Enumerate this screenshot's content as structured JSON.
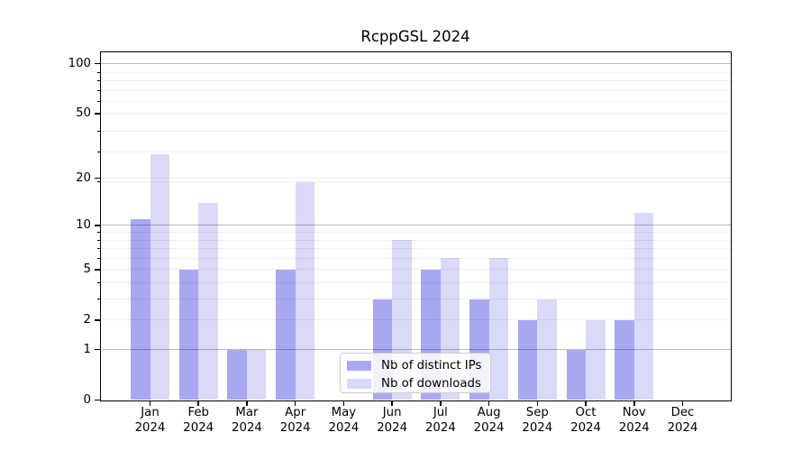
{
  "chart_data": {
    "type": "bar",
    "title": "RcppGSL 2024",
    "x_categories": [
      "Jan",
      "Feb",
      "Mar",
      "Apr",
      "May",
      "Jun",
      "Jul",
      "Aug",
      "Sep",
      "Oct",
      "Nov",
      "Dec"
    ],
    "year": "2024",
    "series": [
      {
        "name": "Nb of distinct IPs",
        "color": "#a8a8f2",
        "values": [
          11,
          5,
          1,
          5,
          0,
          3,
          5,
          3,
          2,
          1,
          2,
          0
        ]
      },
      {
        "name": "Nb of downloads",
        "color": "#d9d9f8",
        "values": [
          28,
          14,
          1,
          19,
          0,
          8,
          6,
          6,
          3,
          2,
          12,
          0
        ]
      }
    ],
    "y_axis": {
      "scale": "log1p",
      "tick_labels": [
        "100",
        "50",
        "20",
        "10",
        "5",
        "2",
        "1",
        "0"
      ],
      "tick_values": [
        100,
        50,
        20,
        10,
        5,
        2,
        1,
        0
      ],
      "major_grid_values": [
        1,
        10,
        100
      ],
      "minor_grid_values": [
        2,
        3,
        4,
        5,
        6,
        7,
        8,
        9,
        19,
        20,
        29,
        39,
        50,
        59,
        69,
        79,
        89
      ],
      "ylim": [
        0,
        117
      ]
    },
    "legend": {
      "position": "inside-bottom-center",
      "entries": [
        "Nb of distinct IPs",
        "Nb of downloads"
      ]
    },
    "grid": true,
    "xlabel": "",
    "ylabel": ""
  },
  "colors": {
    "bar_distinct_ips": "#a8a8f2",
    "bar_downloads": "#d9d9f8",
    "grid_major": "rgba(0,0,0,0.27)",
    "grid_minor": "rgba(0,0,0,0.065)",
    "axis": "#000000",
    "text": "#000000",
    "legend_border": "#cccccc",
    "background": "#ffffff"
  }
}
